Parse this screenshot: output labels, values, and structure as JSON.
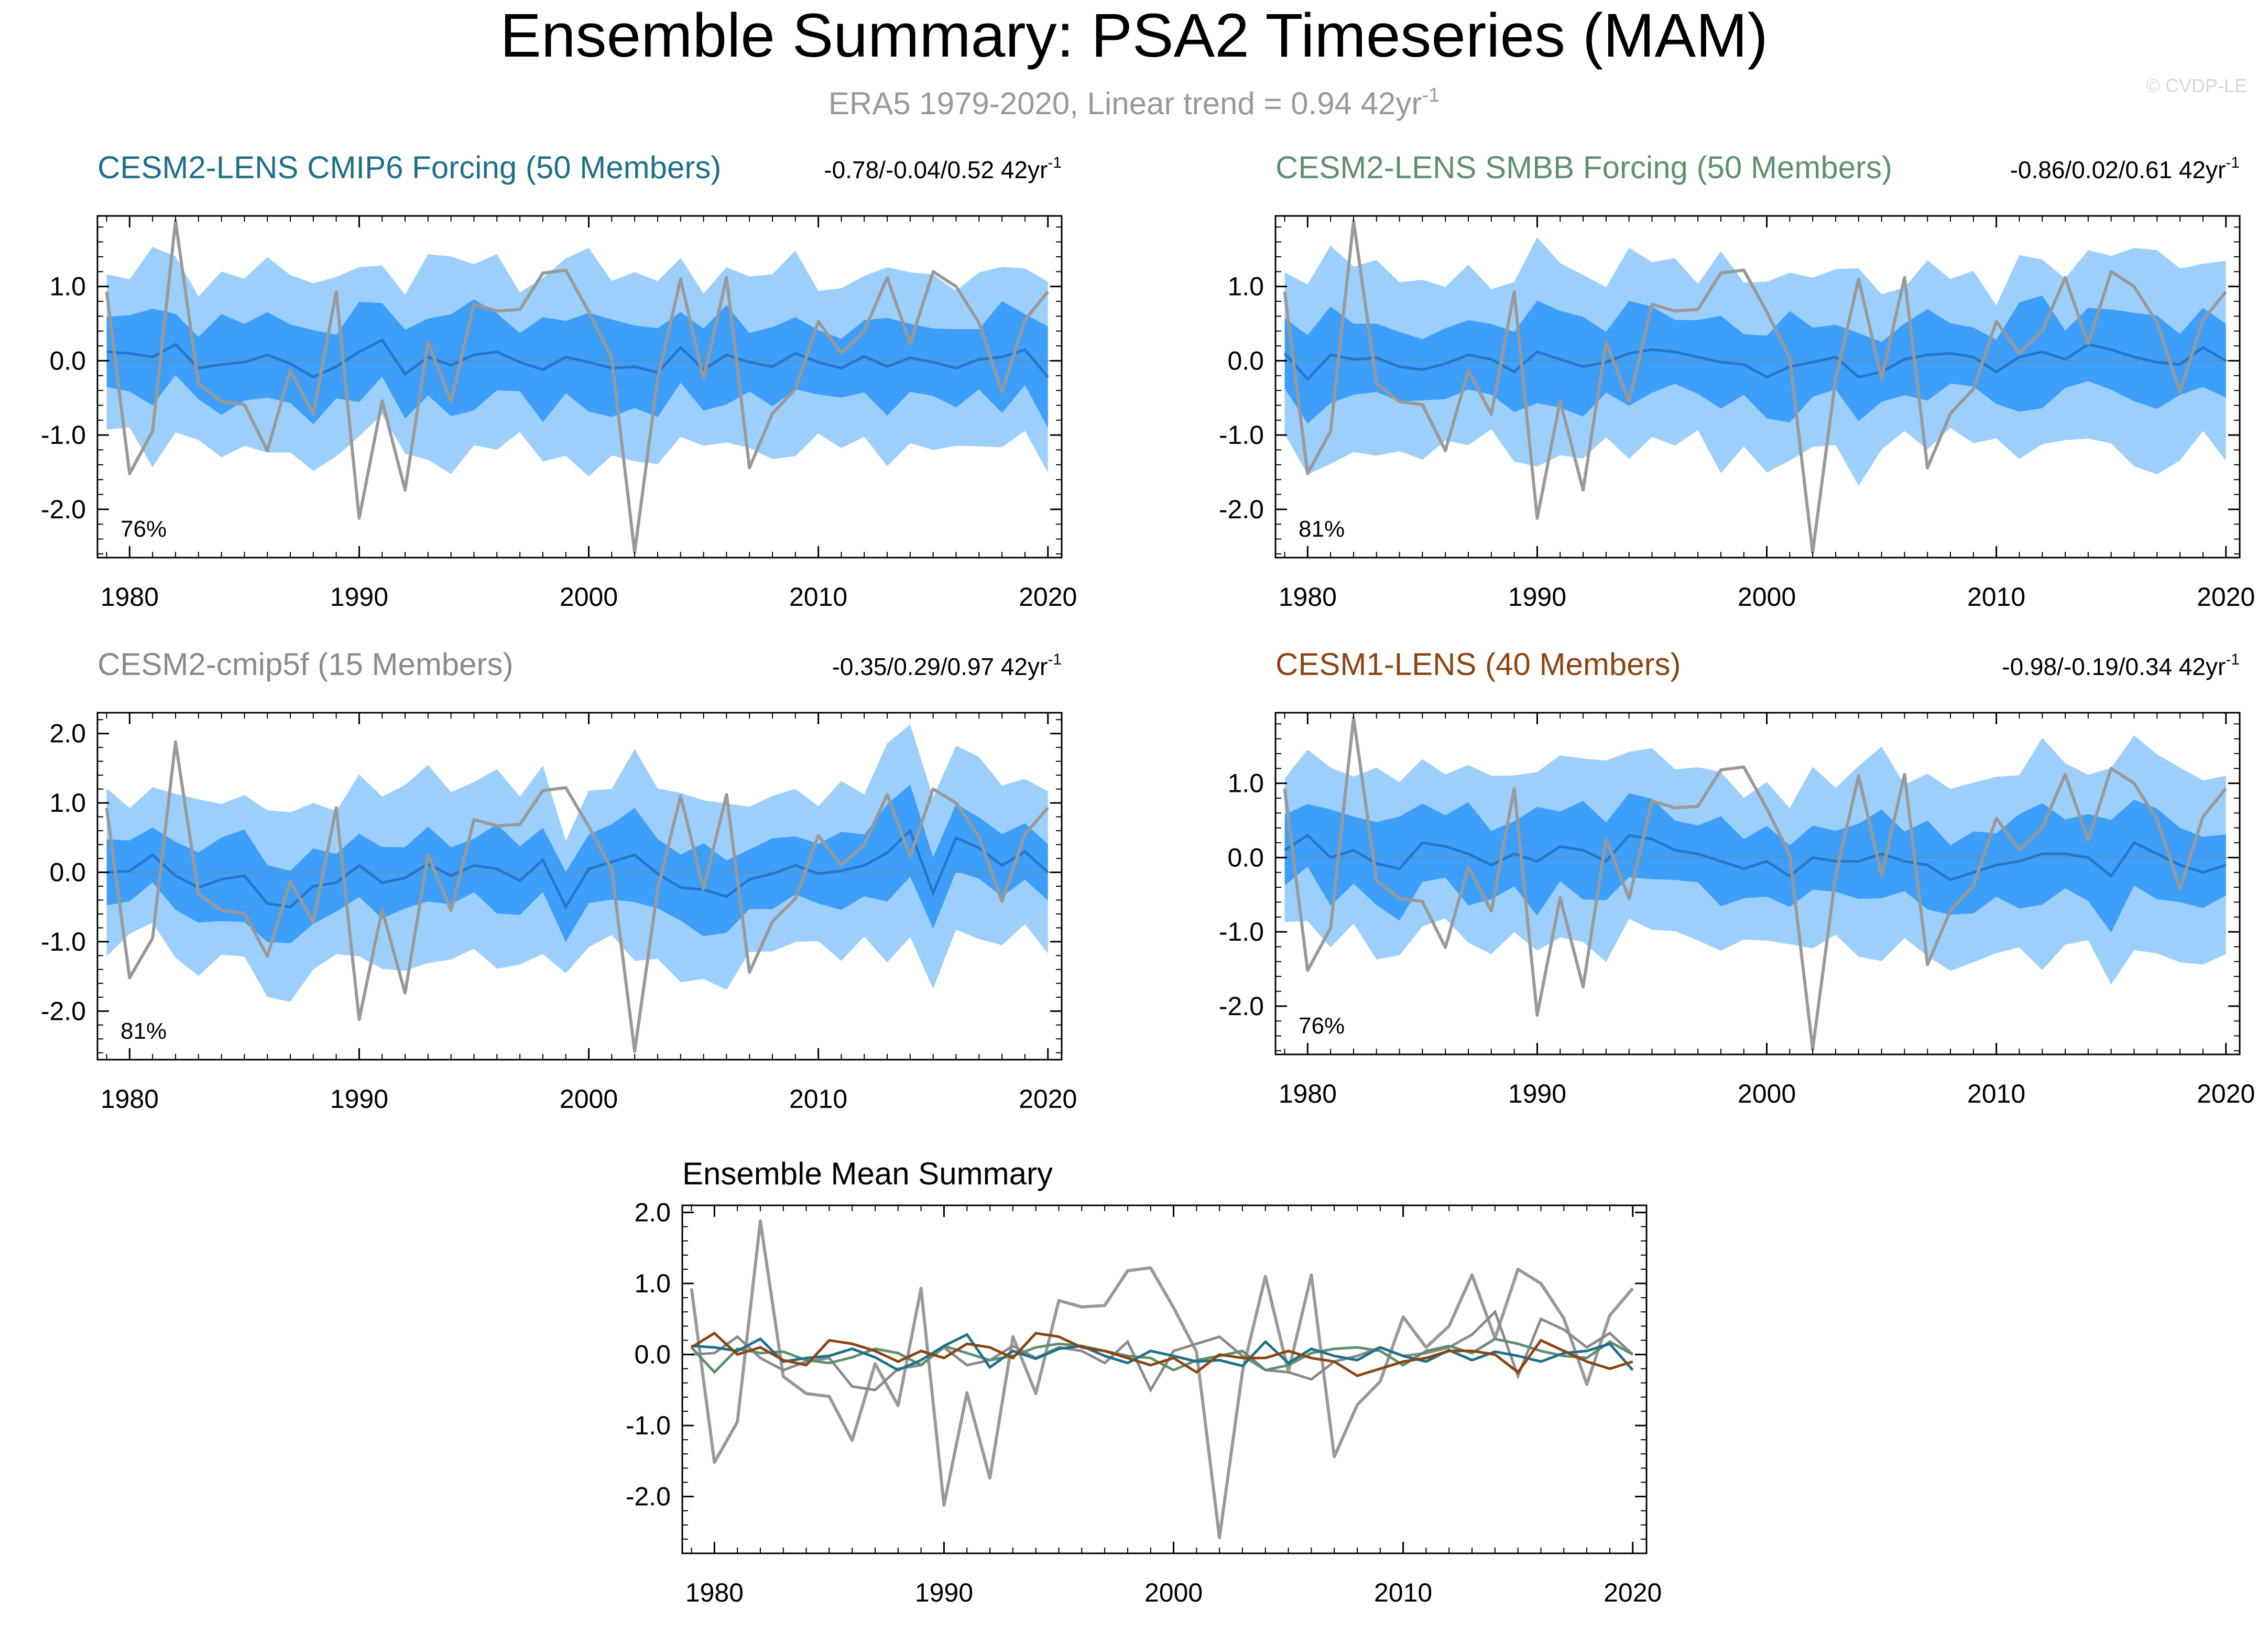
{
  "title": "Ensemble Summary: PSA2 Timeseries (MAM)",
  "subtitle": {
    "text": "ERA5 1979-2020, Linear trend = 0.94 42yr",
    "exponent": "-1"
  },
  "watermark": "© CVDP-LE",
  "colors": {
    "outer_band": "#9dcffc",
    "inner_band": "#3d9ffa",
    "ens_mean_line": "#2677c9",
    "obs_line": "#999999",
    "cesm2_cmip6": "#1f6f8b",
    "cesm2_smbb": "#5f8f6e",
    "cesm2_cmip5f": "#8a8a8a",
    "cesm1": "#8b4513"
  },
  "chart_data": [
    {
      "type": "line",
      "panel": "top-left",
      "title": "CESM2-LENS CMIP6 Forcing (50 Members)",
      "title_color": "#1f6f8b",
      "trend": {
        "text": "-0.78/-0.04/0.52 42yr",
        "exponent": "-1"
      },
      "percent_label": "76%",
      "x_ticks": [
        "1980",
        "1990",
        "2000",
        "2010",
        "2020"
      ],
      "y_ticks": [
        "1.0",
        "0.0",
        "-1.0",
        "-2.0"
      ],
      "xlim": [
        1978.6,
        2020.6
      ],
      "ylim": [
        -2.65,
        1.95
      ],
      "seed": 11,
      "ens_mean": [
        0.12,
        0.1,
        0.05,
        0.22,
        -0.1,
        -0.05,
        -0.02,
        0.08,
        -0.04,
        -0.22,
        -0.08,
        0.12,
        0.28,
        -0.18,
        0.05,
        -0.06,
        0.08,
        0.12,
        -0.02,
        -0.12,
        0.05,
        -0.02,
        -0.1,
        -0.08,
        -0.16,
        0.18,
        -0.12,
        0.08,
        -0.02,
        -0.08,
        0.1,
        -0.02,
        -0.1,
        0.06,
        -0.08,
        0.04,
        -0.02,
        -0.1,
        0.02,
        0.05,
        0.15,
        -0.22
      ],
      "obs": [
        0.93,
        -1.52,
        -0.95,
        1.88,
        -0.31,
        -0.55,
        -0.59,
        -1.21,
        -0.13,
        -0.72,
        0.93,
        -2.12,
        -0.54,
        -1.74,
        0.25,
        -0.55,
        0.76,
        0.67,
        0.69,
        1.18,
        1.22,
        0.66,
        0.04,
        -2.58,
        -0.24,
        1.1,
        -0.24,
        1.12,
        -1.44,
        -0.71,
        -0.38,
        0.53,
        0.1,
        0.4,
        1.12,
        0.23,
        1.2,
        1.0,
        0.51,
        -0.42,
        0.55,
        0.93
      ]
    },
    {
      "type": "line",
      "panel": "top-right",
      "title": "CESM2-LENS SMBB Forcing (50 Members)",
      "title_color": "#5f8f6e",
      "trend": {
        "text": "-0.86/0.02/0.61 42yr",
        "exponent": "-1"
      },
      "percent_label": "81%",
      "x_ticks": [
        "1980",
        "1990",
        "2000",
        "2010",
        "2020"
      ],
      "y_ticks": [
        "1.0",
        "0.0",
        "-1.0",
        "-2.0"
      ],
      "xlim": [
        1978.6,
        2020.6
      ],
      "ylim": [
        -2.65,
        1.95
      ],
      "seed": 23,
      "ens_mean": [
        0.1,
        -0.25,
        0.08,
        0.02,
        0.04,
        -0.08,
        -0.12,
        -0.04,
        0.08,
        0.02,
        -0.15,
        0.12,
        0.02,
        -0.08,
        -0.02,
        0.1,
        0.15,
        0.12,
        0.05,
        -0.02,
        -0.05,
        -0.22,
        -0.08,
        -0.02,
        0.05,
        -0.22,
        -0.15,
        0.02,
        0.08,
        0.1,
        0.05,
        -0.15,
        0.05,
        0.12,
        0.02,
        0.22,
        0.15,
        0.05,
        -0.02,
        -0.05,
        0.18,
        0.0
      ],
      "obs": [
        0.93,
        -1.52,
        -0.95,
        1.88,
        -0.31,
        -0.55,
        -0.59,
        -1.21,
        -0.13,
        -0.72,
        0.93,
        -2.12,
        -0.54,
        -1.74,
        0.25,
        -0.55,
        0.76,
        0.67,
        0.69,
        1.18,
        1.22,
        0.66,
        0.04,
        -2.58,
        -0.24,
        1.1,
        -0.24,
        1.12,
        -1.44,
        -0.71,
        -0.38,
        0.53,
        0.1,
        0.4,
        1.12,
        0.23,
        1.2,
        1.0,
        0.51,
        -0.42,
        0.55,
        0.93
      ]
    },
    {
      "type": "line",
      "panel": "middle-left",
      "title": "CESM2-cmip5f (15 Members)",
      "title_color": "#8a8a8a",
      "trend": {
        "text": "-0.35/0.29/0.97 42yr",
        "exponent": "-1"
      },
      "percent_label": "81%",
      "x_ticks": [
        "1980",
        "1990",
        "2000",
        "2010",
        "2020"
      ],
      "y_ticks": [
        "2.0",
        "1.0",
        "0.0",
        "-1.0",
        "-2.0"
      ],
      "xlim": [
        1978.6,
        2020.6
      ],
      "ylim": [
        -2.7,
        2.3
      ],
      "seed": 37,
      "ens_mean": [
        0.0,
        0.02,
        0.25,
        -0.05,
        -0.22,
        -0.1,
        -0.05,
        -0.45,
        -0.5,
        -0.2,
        -0.15,
        0.1,
        -0.15,
        -0.08,
        0.12,
        -0.05,
        0.1,
        0.05,
        -0.12,
        0.18,
        -0.5,
        0.05,
        0.15,
        0.25,
        -0.02,
        -0.22,
        -0.25,
        -0.35,
        -0.1,
        -0.02,
        0.1,
        -0.02,
        0.02,
        0.1,
        0.28,
        0.6,
        -0.3,
        0.5,
        0.35,
        0.1,
        0.3,
        0.0
      ],
      "obs": [
        0.93,
        -1.52,
        -0.95,
        1.88,
        -0.31,
        -0.55,
        -0.59,
        -1.21,
        -0.13,
        -0.72,
        0.93,
        -2.12,
        -0.54,
        -1.74,
        0.25,
        -0.55,
        0.76,
        0.67,
        0.69,
        1.18,
        1.22,
        0.66,
        0.04,
        -2.58,
        -0.24,
        1.1,
        -0.24,
        1.12,
        -1.44,
        -0.71,
        -0.38,
        0.53,
        0.1,
        0.4,
        1.12,
        0.23,
        1.2,
        1.0,
        0.51,
        -0.42,
        0.55,
        0.93
      ]
    },
    {
      "type": "line",
      "panel": "middle-right",
      "title": "CESM1-LENS (40 Members)",
      "title_color": "#8b4513",
      "trend": {
        "text": "-0.98/-0.19/0.34 42yr",
        "exponent": "-1"
      },
      "percent_label": "76%",
      "x_ticks": [
        "1980",
        "1990",
        "2000",
        "2010",
        "2020"
      ],
      "y_ticks": [
        "1.0",
        "0.0",
        "-1.0",
        "-2.0"
      ],
      "xlim": [
        1978.6,
        2020.6
      ],
      "ylim": [
        -2.65,
        1.95
      ],
      "seed": 53,
      "ens_mean": [
        0.1,
        0.3,
        0.0,
        0.1,
        -0.08,
        -0.15,
        0.2,
        0.15,
        0.05,
        -0.1,
        0.05,
        -0.05,
        0.15,
        0.1,
        -0.05,
        0.3,
        0.25,
        0.1,
        0.05,
        -0.05,
        -0.15,
        -0.05,
        -0.25,
        0.0,
        -0.05,
        -0.05,
        0.05,
        -0.05,
        -0.1,
        -0.3,
        -0.2,
        -0.1,
        -0.05,
        0.05,
        0.05,
        0.0,
        -0.25,
        0.2,
        0.05,
        -0.1,
        -0.2,
        -0.1
      ],
      "obs": [
        0.93,
        -1.52,
        -0.95,
        1.88,
        -0.31,
        -0.55,
        -0.59,
        -1.21,
        -0.13,
        -0.72,
        0.93,
        -2.12,
        -0.54,
        -1.74,
        0.25,
        -0.55,
        0.76,
        0.67,
        0.69,
        1.18,
        1.22,
        0.66,
        0.04,
        -2.58,
        -0.24,
        1.1,
        -0.24,
        1.12,
        -1.44,
        -0.71,
        -0.38,
        0.53,
        0.1,
        0.4,
        1.12,
        0.23,
        1.2,
        1.0,
        0.51,
        -0.42,
        0.55,
        0.93
      ]
    },
    {
      "type": "line",
      "panel": "bottom-center",
      "title": "Ensemble Mean Summary",
      "x_ticks": [
        "1980",
        "1990",
        "2000",
        "2010",
        "2020"
      ],
      "y_ticks": [
        "2.0",
        "1.0",
        "0.0",
        "-1.0",
        "-2.0"
      ],
      "xlim": [
        1978.6,
        2020.6
      ],
      "ylim": [
        -2.8,
        2.1
      ],
      "series_refs": [
        {
          "name": "ERA5",
          "color": "#999999"
        },
        {
          "name": "CESM2-cmip5f (15 Members)",
          "color": "#8a8a8a"
        },
        {
          "name": "CESM2-LENS SMBB Forcing (50 Members)",
          "color": "#5f8f6e"
        },
        {
          "name": "CESM2-LENS CMIP6 Forcing (50 Members)",
          "color": "#1f6f8b"
        },
        {
          "name": "CESM1-LENS (40 Members)",
          "color": "#8b4513"
        }
      ]
    }
  ]
}
